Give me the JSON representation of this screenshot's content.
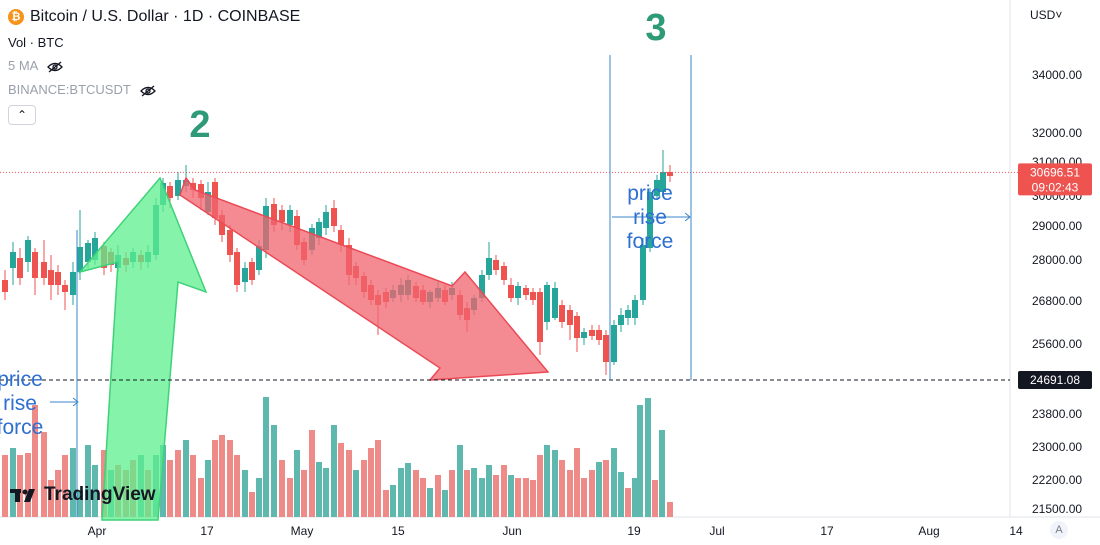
{
  "header": {
    "title": "Bitcoin / U.S. Dollar · 1D · COINBASE",
    "coin_symbol": "₿",
    "vol_label": "Vol · BTC",
    "ma_label": "5 MA",
    "compare_label": "BINANCE:BTCUSDT",
    "collapse_glyph": "⌃",
    "currency": "USD",
    "currency_caret": "˅"
  },
  "branding": {
    "logo_text": "TradingView",
    "auto_label": "A"
  },
  "annotations": {
    "label_2": "2",
    "label_3": "3",
    "force_text": [
      "price",
      "rise",
      "force"
    ]
  },
  "colors": {
    "up": "#26a69a",
    "down": "#ef5350",
    "up_vol": "#5fb8ae",
    "down_vol": "#ee8a88",
    "arrow_green": "#5cef8e",
    "arrow_red": "#f2646e",
    "annot_blue": "#2e6fd1",
    "label_green": "#2f9a77"
  },
  "chart_data": {
    "type": "candlestick",
    "y_ticks": [
      34000,
      32000,
      31000,
      30000,
      29000,
      28000,
      26800,
      25600,
      24691.08,
      23800,
      23000,
      22200,
      21500
    ],
    "x_labels": [
      {
        "label": "Apr",
        "x": 97
      },
      {
        "label": "17",
        "x": 207
      },
      {
        "label": "May",
        "x": 302
      },
      {
        "label": "15",
        "x": 398
      },
      {
        "label": "Jun",
        "x": 512
      },
      {
        "label": "19",
        "x": 634
      },
      {
        "label": "Jul",
        "x": 717
      },
      {
        "label": "17",
        "x": 827
      },
      {
        "label": "Aug",
        "x": 929
      },
      {
        "label": "14",
        "x": 1016
      }
    ],
    "last_price": 30696.51,
    "last_price_label": "30696.51",
    "countdown": "09:02:43",
    "support_level": 24691.08,
    "support_label": "24691.08"
  }
}
